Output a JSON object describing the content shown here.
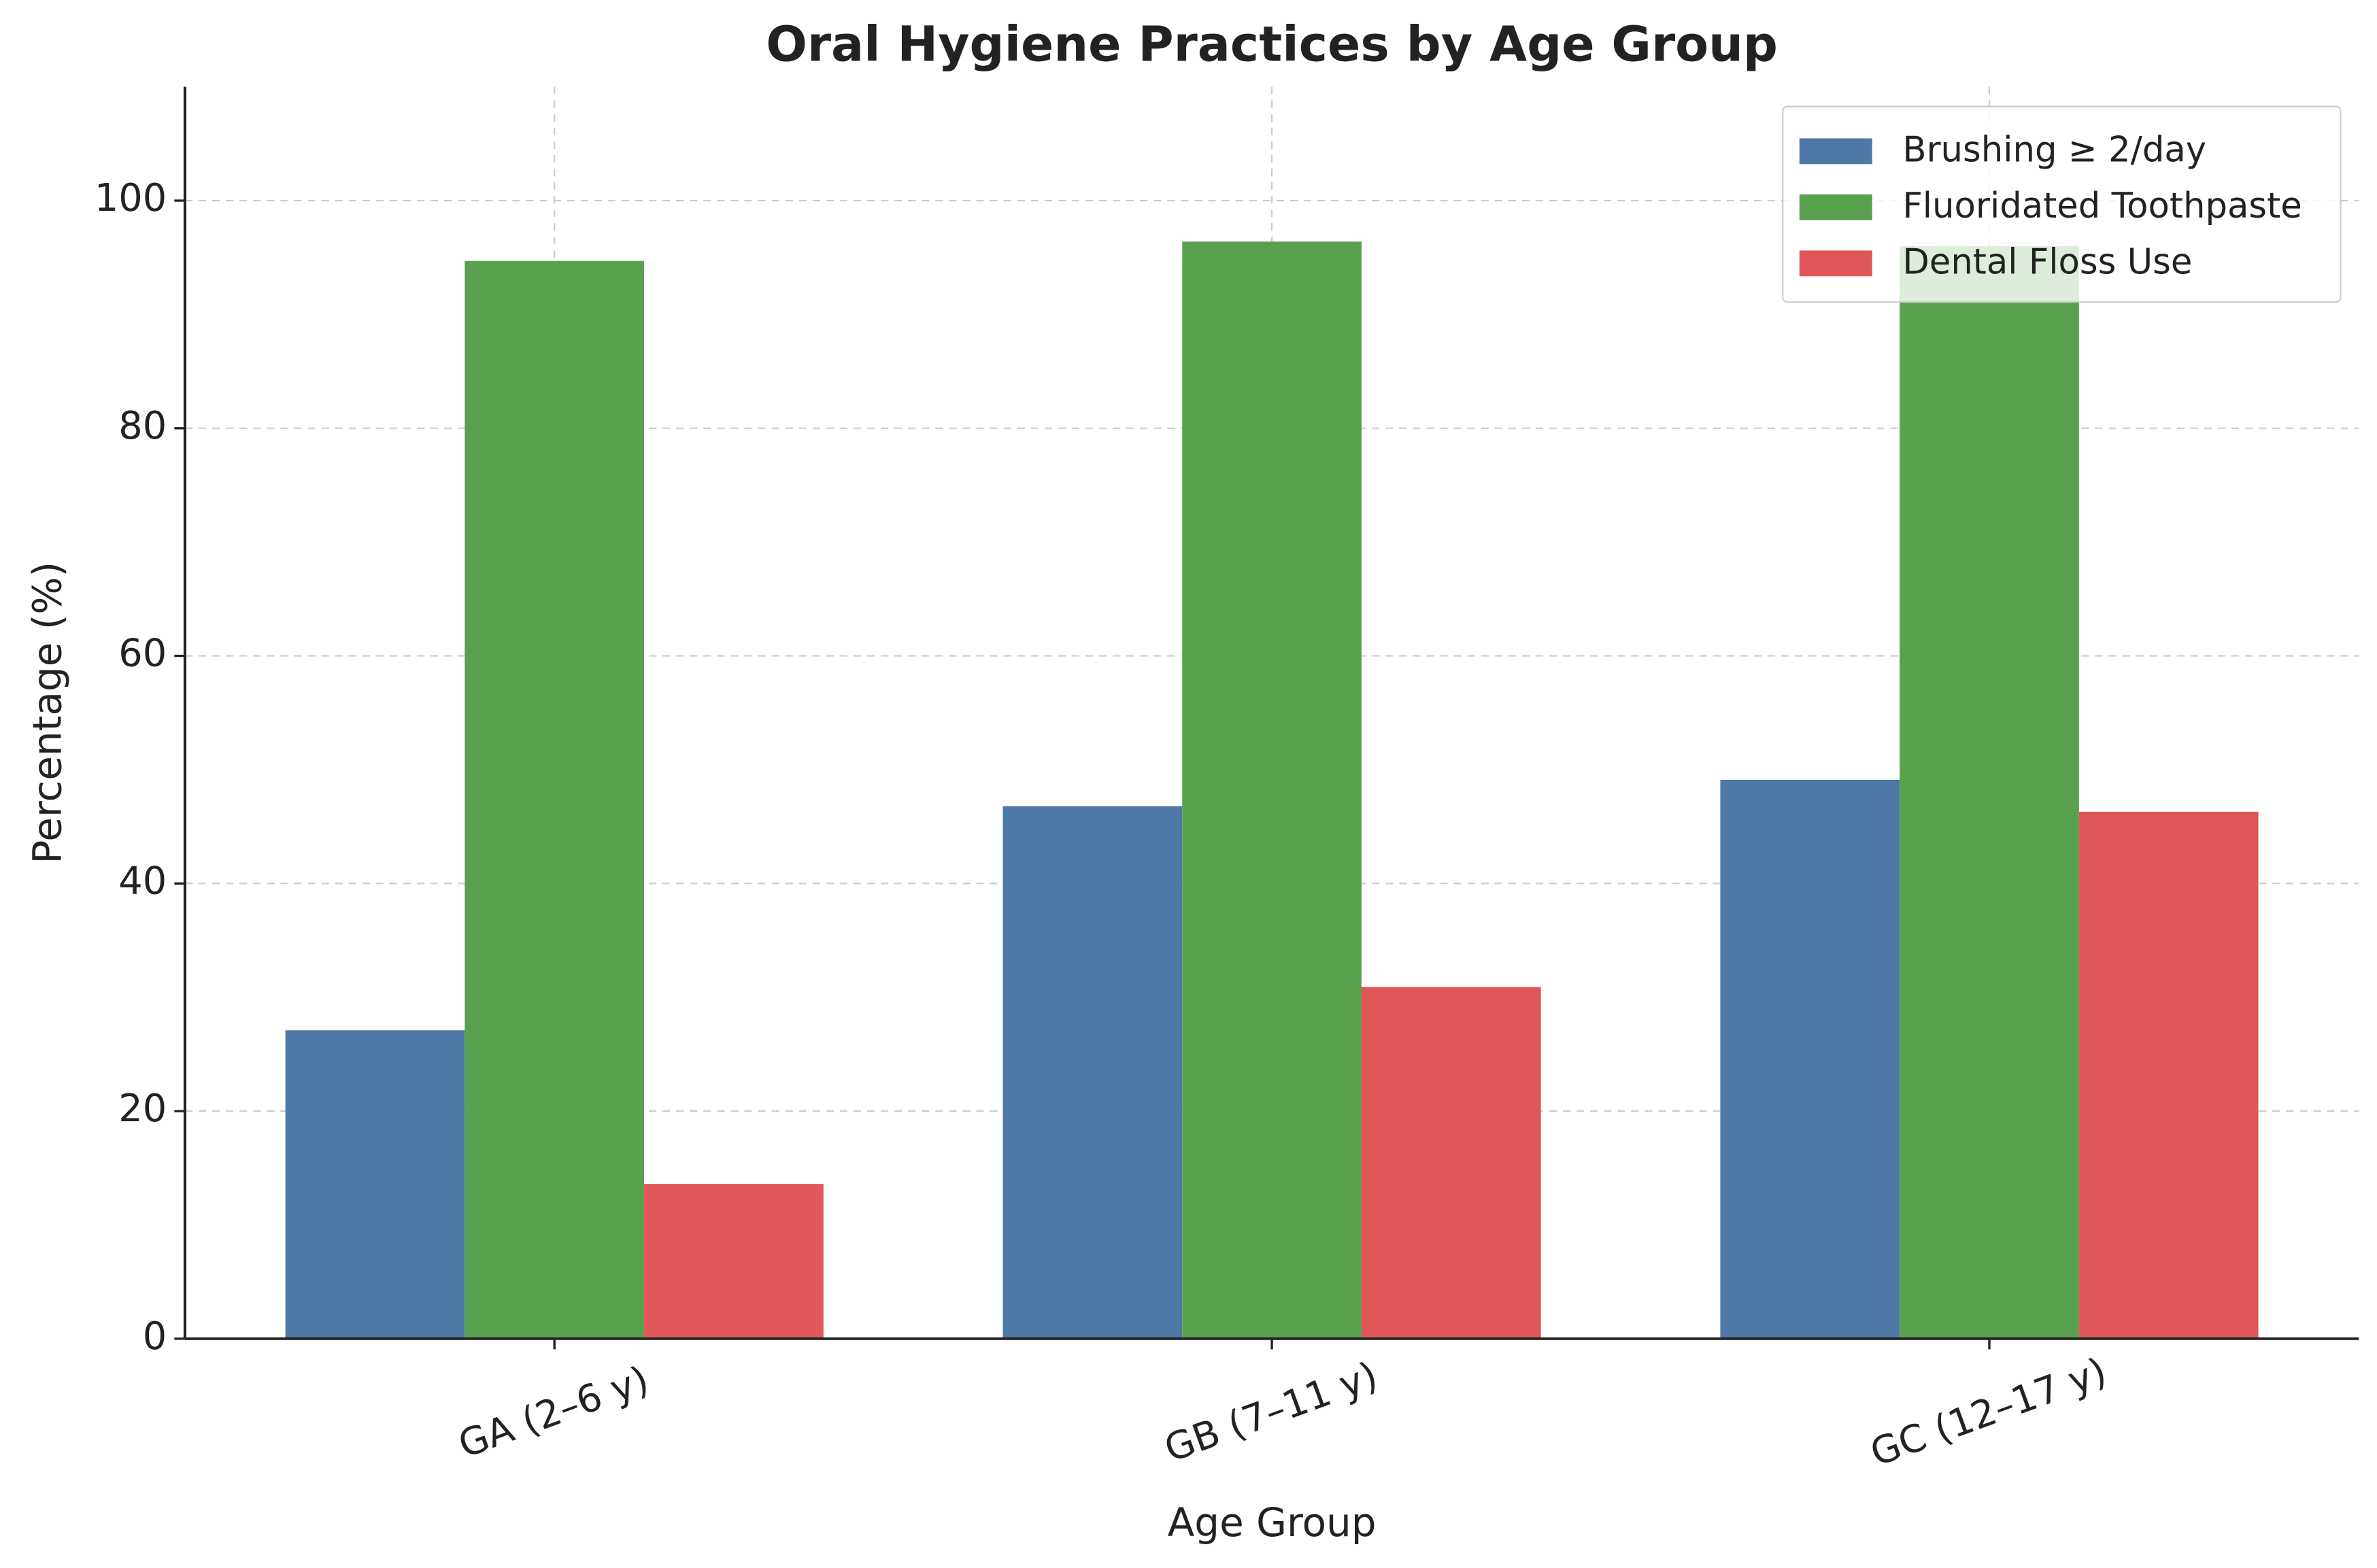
{
  "chart_data": {
    "type": "bar",
    "title": "Oral Hygiene Practices by Age Group",
    "x_label": "Age Group",
    "y_label": "Percentage (%)",
    "categories": [
      "GA (2–6 y)",
      "GB (7–11 y)",
      "GC (12–17 y)"
    ],
    "series": [
      {
        "name": "Brushing ≥ 2/day",
        "color": "#4e79a7",
        "values": [
          27.1,
          46.8,
          49.1
        ]
      },
      {
        "name": "Fluoridated Toothpaste",
        "color": "#59a14f",
        "values": [
          94.7,
          96.4,
          96
        ]
      },
      {
        "name": "Dental Floss Use",
        "color": "#e15759",
        "values": [
          13.6,
          30.9,
          46.3
        ]
      }
    ],
    "ylim": [
      0,
      110
    ],
    "yticks": [
      0,
      20,
      40,
      60,
      80,
      100
    ],
    "grid": true,
    "legend": "upper right"
  }
}
